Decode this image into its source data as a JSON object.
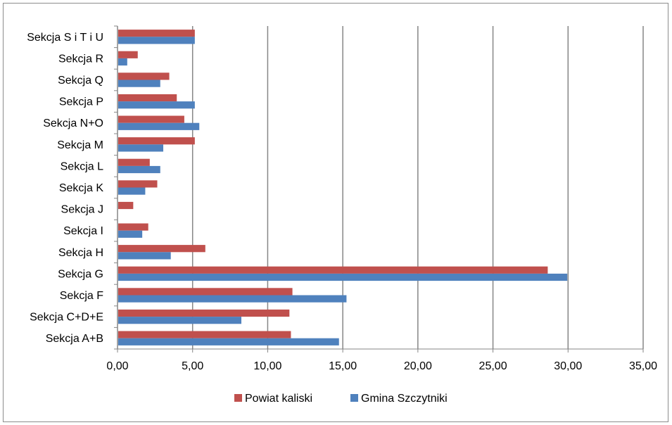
{
  "chart_data": {
    "type": "bar",
    "orientation": "horizontal",
    "categories": [
      "Sekcja A+B",
      "Sekcja C+D+E",
      "Sekcja F",
      "Sekcja G",
      "Sekcja H",
      "Sekcja I",
      "Sekcja J",
      "Sekcja K",
      "Sekcja L",
      "Sekcja M",
      "Sekcja N+O",
      "Sekcja P",
      "Sekcja Q",
      "Sekcja R",
      "Sekcja S i T i U"
    ],
    "series": [
      {
        "name": "Powiat kaliski",
        "color": "#c0504d",
        "values": [
          11.5,
          11.4,
          11.6,
          28.6,
          5.8,
          2.0,
          1.0,
          2.6,
          2.1,
          5.1,
          4.4,
          3.9,
          3.4,
          1.3,
          5.1
        ]
      },
      {
        "name": "Gmina Szczytniki",
        "color": "#4f81bd",
        "values": [
          14.7,
          8.2,
          15.2,
          29.9,
          3.5,
          1.6,
          0.0,
          1.8,
          2.8,
          3.0,
          5.4,
          5.1,
          2.8,
          0.6,
          5.1
        ]
      }
    ],
    "xlim": [
      0,
      35
    ],
    "x_ticks": [
      "0,00",
      "5,00",
      "10,00",
      "15,00",
      "20,00",
      "25,00",
      "30,00",
      "35,00"
    ],
    "grid": "vertical",
    "legend_position": "bottom",
    "title": "",
    "xlabel": "",
    "ylabel": ""
  }
}
